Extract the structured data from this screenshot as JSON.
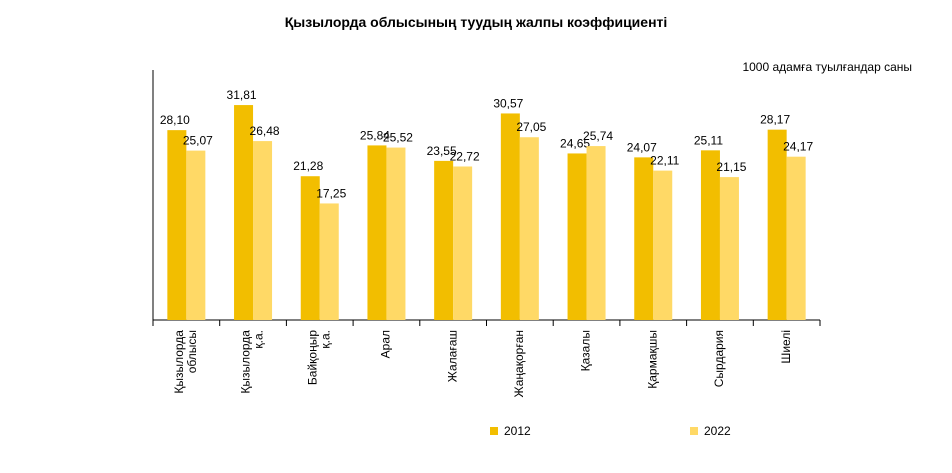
{
  "chart_data": {
    "type": "bar",
    "title": "Қызылорда облысының  туудың жалпы коэффициенті",
    "unit_label": "1000 адамға туылғандар саны",
    "categories": [
      [
        "Қызылорда",
        "облысы"
      ],
      [
        "Қызылорда",
        "қ.а."
      ],
      [
        "Байқоңыр",
        "қ.а."
      ],
      [
        "Арал"
      ],
      [
        "Жалағаш"
      ],
      [
        "Жаңақорған"
      ],
      [
        "Қазалы"
      ],
      [
        "Қармақшы"
      ],
      [
        "Сырдария"
      ],
      [
        "Шиелі"
      ]
    ],
    "series": [
      {
        "name": "2012",
        "color": "#F2BE00",
        "values": [
          28.1,
          31.81,
          21.28,
          25.84,
          23.55,
          30.57,
          24.65,
          24.07,
          25.11,
          28.17
        ],
        "labels": [
          "28,10",
          "31,81",
          "21,28",
          "25,84",
          "23,55",
          "30,57",
          "24,65",
          "24,07",
          "25,11",
          "28,17"
        ]
      },
      {
        "name": "2022",
        "color": "#FFD966",
        "values": [
          25.07,
          26.48,
          17.25,
          25.52,
          22.72,
          27.05,
          25.74,
          22.11,
          21.15,
          24.17
        ],
        "labels": [
          "25,07",
          "26,48",
          "17,25",
          "25,52",
          "22,72",
          "27,05",
          "25,74",
          "22,11",
          "21,15",
          "24,17"
        ]
      }
    ],
    "ylim": [
      0,
      37
    ],
    "grid": false,
    "legend_position": "bottom"
  }
}
